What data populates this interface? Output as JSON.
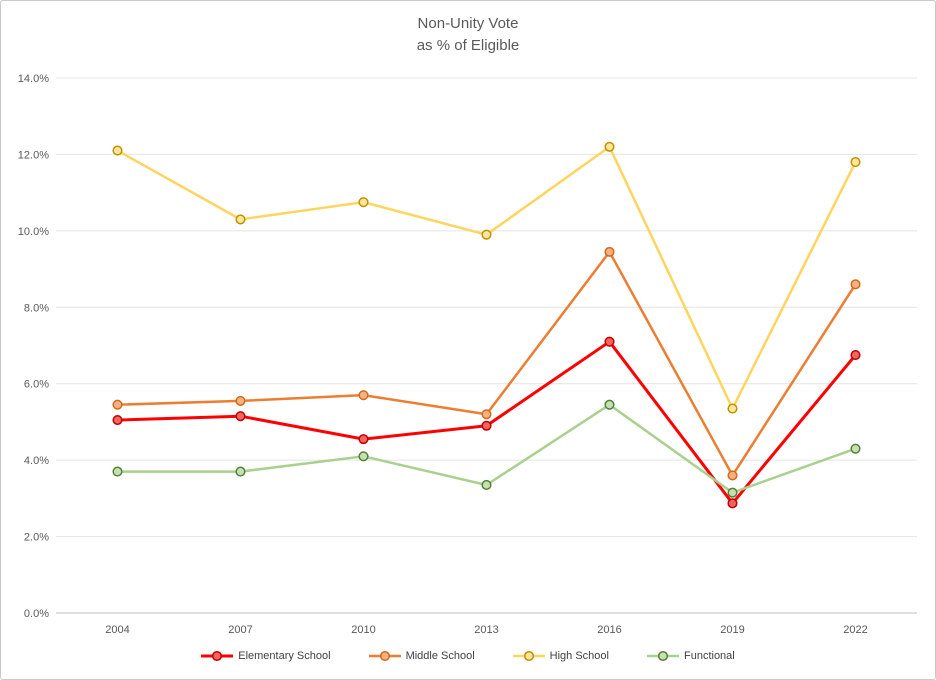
{
  "chart_data": {
    "type": "line",
    "title": "Non-Unity Vote",
    "subtitle": "as % of Eligible",
    "categories": [
      "2004",
      "2007",
      "2010",
      "2013",
      "2016",
      "2019",
      "2022"
    ],
    "series": [
      {
        "name": "Elementary School",
        "color": "#ff0000",
        "marker_fill": "#f2655e",
        "marker_stroke": "#c00000",
        "line_width": 3,
        "values": [
          5.05,
          5.15,
          4.55,
          4.9,
          7.1,
          2.87,
          6.75
        ]
      },
      {
        "name": "Middle School",
        "color": "#ed7d31",
        "marker_fill": "#f6b183",
        "marker_stroke": "#d26a1d",
        "line_width": 2.5,
        "values": [
          5.45,
          5.55,
          5.7,
          5.2,
          9.45,
          3.6,
          8.6
        ]
      },
      {
        "name": "High School",
        "color": "#ffd45f",
        "marker_fill": "#ffe699",
        "marker_stroke": "#bf9000",
        "line_width": 2.5,
        "values": [
          12.1,
          10.3,
          10.75,
          9.9,
          12.2,
          5.35,
          11.8
        ]
      },
      {
        "name": "Functional",
        "color": "#a9d18e",
        "marker_fill": "#c6e0b4",
        "marker_stroke": "#538135",
        "line_width": 2.5,
        "values": [
          3.7,
          3.7,
          4.1,
          3.35,
          5.45,
          3.15,
          4.3
        ]
      }
    ],
    "ylim": [
      0,
      14
    ],
    "ytick_step": 2,
    "ytick_labels": [
      "0.0%",
      "2.0%",
      "4.0%",
      "6.0%",
      "8.0%",
      "10.0%",
      "12.0%",
      "14.0%"
    ],
    "grid": true,
    "legend_position": "bottom",
    "colors": {
      "grid": "#e4e4e4",
      "axis": "#bfbfbf",
      "tick_text": "#595959",
      "title_text": "#595959",
      "legend_text": "#3f3f3f"
    }
  }
}
